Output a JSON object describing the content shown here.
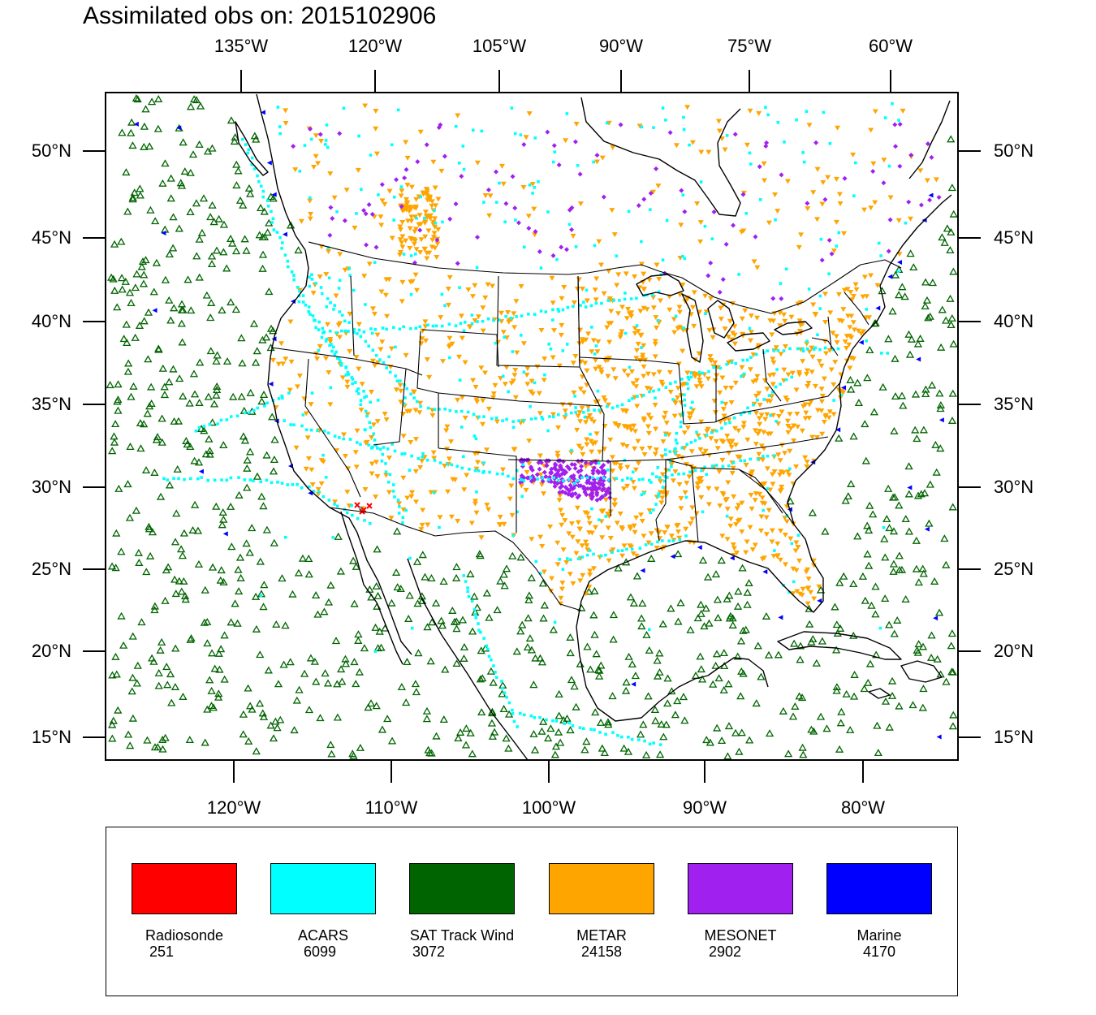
{
  "title": "Assimilated obs on: 2015102906",
  "map": {
    "top_lon_labels": [
      "135°W",
      "120°W",
      "105°W",
      "90°W",
      "75°W",
      "60°W"
    ],
    "bottom_lon_labels": [
      "120°W",
      "110°W",
      "100°W",
      "90°W",
      "80°W"
    ],
    "left_lat_labels": [
      "50°N",
      "45°N",
      "40°N",
      "35°N",
      "30°N",
      "25°N",
      "20°N",
      "15°N"
    ],
    "right_lat_labels": [
      "50°N",
      "45°N",
      "40°N",
      "35°N",
      "30°N",
      "25°N",
      "20°N",
      "15°N"
    ]
  },
  "legend": {
    "items": [
      {
        "label": "Radiosonde",
        "count": "251",
        "color": "#ff0000",
        "marker": "x-cross"
      },
      {
        "label": "ACARS",
        "count": "6099",
        "color": "#00ffff",
        "marker": "square-dot"
      },
      {
        "label": "SAT Track Wind",
        "count": "3072",
        "color": "#006400",
        "marker": "triangle-up-outline"
      },
      {
        "label": "METAR",
        "count": "24158",
        "color": "#ffa500",
        "marker": "triangle-down"
      },
      {
        "label": "MESONET",
        "count": "2902",
        "color": "#a020f0",
        "marker": "diamond"
      },
      {
        "label": "Marine",
        "count": "4170",
        "color": "#0000ff",
        "marker": "triangle-left"
      }
    ]
  }
}
